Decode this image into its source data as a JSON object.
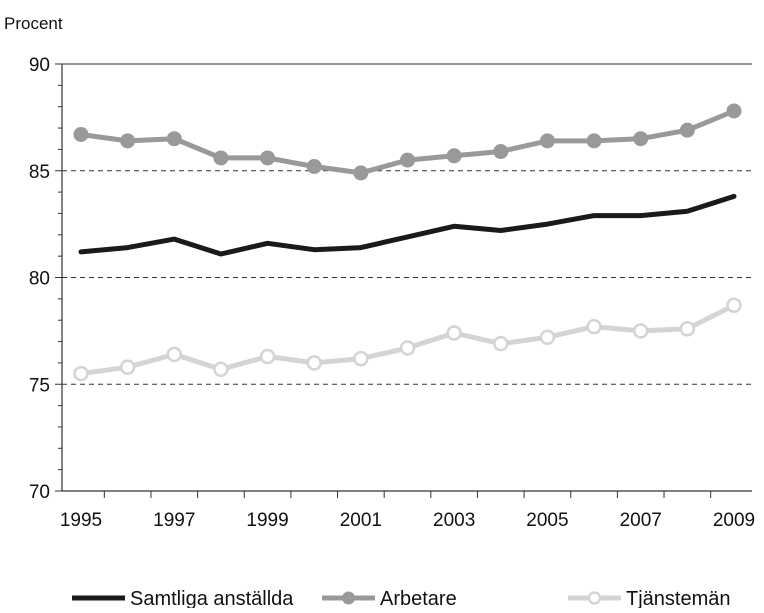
{
  "chart_data": {
    "type": "line",
    "title": "",
    "xlabel": "",
    "ylabel": "Procent",
    "ylim": [
      70,
      90
    ],
    "yticks": [
      70,
      75,
      80,
      85,
      90
    ],
    "x": [
      1995,
      1996,
      1997,
      1998,
      1999,
      2000,
      2001,
      2002,
      2003,
      2004,
      2005,
      2006,
      2007,
      2008,
      2009
    ],
    "xtick_labels": [
      "1995",
      "1997",
      "1999",
      "2001",
      "2003",
      "2005",
      "2007",
      "2009"
    ],
    "grid": "horizontal dashed at 75, 80, 85",
    "legend_position": "bottom",
    "series": [
      {
        "name": "Samtliga anställda",
        "color": "#1a1a1a",
        "marker": "none",
        "values": [
          81.2,
          81.4,
          81.8,
          81.1,
          81.6,
          81.3,
          81.4,
          81.9,
          82.4,
          82.2,
          82.5,
          82.9,
          82.9,
          83.1,
          83.8
        ]
      },
      {
        "name": "Arbetare",
        "color": "#999999",
        "marker": "filled-circle",
        "values": [
          86.7,
          86.4,
          86.5,
          85.6,
          85.6,
          85.2,
          84.9,
          85.5,
          85.7,
          85.9,
          86.4,
          86.4,
          86.5,
          86.9,
          87.8
        ]
      },
      {
        "name": "Tjänstemän",
        "color": "#d4d4d4",
        "marker": "open-circle",
        "values": [
          75.5,
          75.8,
          76.4,
          75.7,
          76.3,
          76.0,
          76.2,
          76.7,
          77.4,
          76.9,
          77.2,
          77.7,
          77.5,
          77.6,
          78.7
        ]
      }
    ]
  }
}
